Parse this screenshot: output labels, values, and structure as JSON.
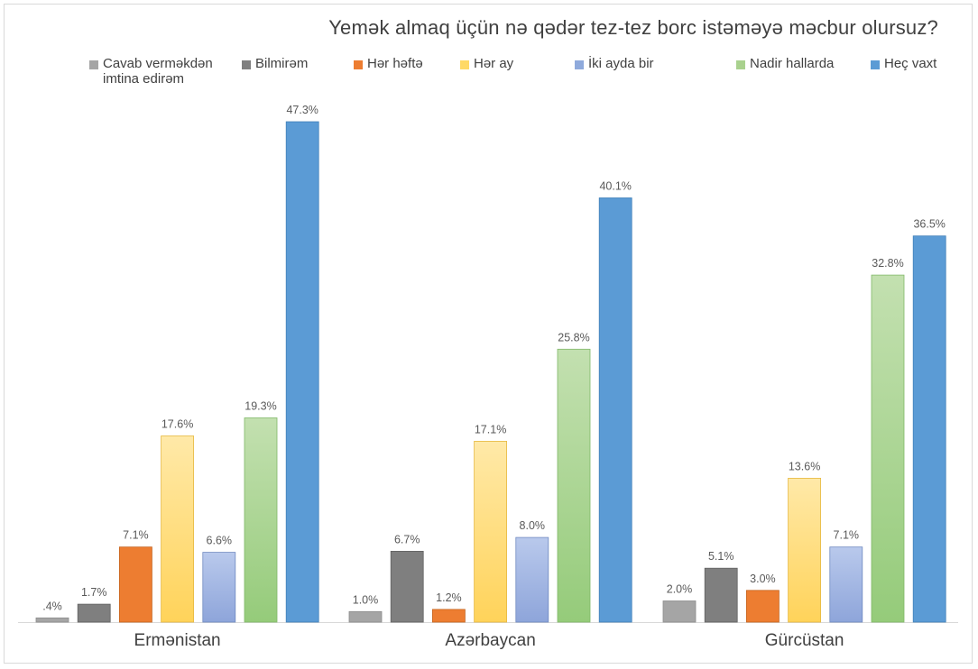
{
  "chart_data": {
    "type": "bar",
    "title": "Yemək almaq üçün nə qədər tez-tez borc istəməyə məcbur olursuz?",
    "xlabel": "",
    "ylabel": "",
    "ylim": [
      0,
      47.3
    ],
    "grid": false,
    "legend_position": "top",
    "categories": [
      "Ermənistan",
      "Azərbaycan",
      "Gürcüstan"
    ],
    "series": [
      {
        "name": "Cavab verməkdən imtina edirəm",
        "color": "#a5a5a5",
        "values": [
          0.4,
          1.0,
          2.0
        ],
        "labels": [
          ".4%",
          "1.0%",
          "2.0%"
        ]
      },
      {
        "name": "Bilmirəm",
        "color": "#7f7f7f",
        "values": [
          1.7,
          6.7,
          5.1
        ],
        "labels": [
          "1.7%",
          "6.7%",
          "5.1%"
        ]
      },
      {
        "name": "Hər həftə",
        "color": "#ed7d31",
        "values": [
          7.1,
          1.2,
          3.0
        ],
        "labels": [
          "7.1%",
          "1.2%",
          "3.0%"
        ]
      },
      {
        "name": "Hər ay",
        "color": "#ffd966",
        "values": [
          17.6,
          17.1,
          13.6
        ],
        "labels": [
          "17.6%",
          "17.1%",
          "13.6%"
        ]
      },
      {
        "name": "İki ayda bir",
        "color": "#8faadc",
        "values": [
          6.6,
          8.0,
          7.1
        ],
        "labels": [
          "6.6%",
          "8.0%",
          "7.1%"
        ]
      },
      {
        "name": "Nadir hallarda",
        "color": "#a9d18e",
        "values": [
          19.3,
          25.8,
          32.8
        ],
        "labels": [
          "19.3%",
          "25.8%",
          "32.8%"
        ]
      },
      {
        "name": "Heç vaxt",
        "color": "#5b9bd5",
        "values": [
          47.3,
          40.1,
          36.5
        ],
        "labels": [
          "47.3%",
          "40.1%",
          "36.5%"
        ]
      }
    ]
  }
}
